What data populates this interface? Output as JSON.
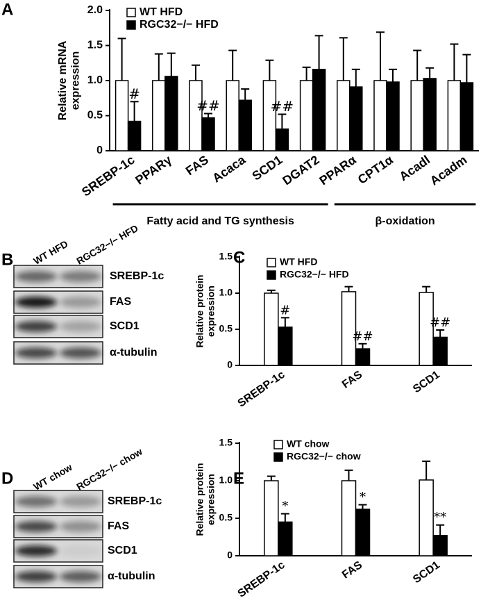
{
  "chart_data": [
    {
      "type": "bar",
      "panel": "A",
      "ylabel": "Relative mRNA expression",
      "categories": [
        "SREBP-1c",
        "PPARγ",
        "FAS",
        "Acaca",
        "SCD1",
        "DGAT2",
        "PPARα",
        "CPT1α",
        "Acadl",
        "Acadm"
      ],
      "series": [
        {
          "name": "WT HFD",
          "color": "#ffffff",
          "values": [
            1.0,
            1.0,
            1.0,
            1.0,
            1.0,
            1.0,
            1.0,
            1.0,
            1.0,
            1.0
          ],
          "errors": [
            0.6,
            0.38,
            0.22,
            0.43,
            0.29,
            0.19,
            0.61,
            0.69,
            0.43,
            0.52
          ],
          "significance": [
            null,
            null,
            null,
            null,
            null,
            null,
            null,
            null,
            null,
            null
          ]
        },
        {
          "name": "RGC32−/− HFD",
          "color": "#000000",
          "values": [
            0.42,
            1.06,
            0.47,
            0.72,
            0.31,
            1.16,
            0.91,
            0.98,
            1.03,
            0.97
          ],
          "errors": [
            0.28,
            0.33,
            0.06,
            0.16,
            0.21,
            0.48,
            0.25,
            0.18,
            0.15,
            0.4
          ],
          "significance": [
            "#",
            null,
            "##",
            null,
            "##",
            null,
            null,
            null,
            null,
            null
          ]
        }
      ],
      "groups": [
        {
          "label": "Fatty acid and TG synthesis",
          "from": "SREBP-1c",
          "to": "DGAT2"
        },
        {
          "label": "β-oxidation",
          "from": "PPARα",
          "to": "Acadm"
        }
      ],
      "ylim": [
        0,
        2
      ],
      "yticks": [
        0,
        0.5,
        {
          "value": 1,
          "label": "1.0"
        },
        1.5,
        {
          "value": 2,
          "label": "2.0"
        }
      ],
      "grid": false
    },
    {
      "type": "bar",
      "panel": "C",
      "ylabel": "Relative protein expression",
      "categories": [
        "SREBP-1c",
        "FAS",
        "SCD1"
      ],
      "series": [
        {
          "name": "WT HFD",
          "color": "#ffffff",
          "values": [
            1.0,
            1.02,
            1.01
          ],
          "errors": [
            0.04,
            0.07,
            0.08
          ],
          "significance": [
            null,
            null,
            null
          ]
        },
        {
          "name": "RGC32−/− HFD",
          "color": "#000000",
          "values": [
            0.53,
            0.23,
            0.39
          ],
          "errors": [
            0.13,
            0.07,
            0.1
          ],
          "significance": [
            "#",
            "##",
            "##"
          ]
        }
      ],
      "ylim": [
        0,
        1.5
      ],
      "yticks": [
        0,
        0.5,
        {
          "value": 1,
          "label": "1.0"
        },
        1.5
      ],
      "grid": false
    },
    {
      "type": "bar",
      "panel": "E",
      "ylabel": "Relative protein expression",
      "categories": [
        "SREBP-1c",
        "FAS",
        "SCD1"
      ],
      "series": [
        {
          "name": "WT chow",
          "color": "#ffffff",
          "values": [
            1.0,
            1.0,
            1.01
          ],
          "errors": [
            0.06,
            0.14,
            0.25
          ],
          "significance": [
            null,
            null,
            null
          ]
        },
        {
          "name": "RGC32−/− chow",
          "color": "#000000",
          "values": [
            0.45,
            0.62,
            0.27
          ],
          "errors": [
            0.11,
            0.06,
            0.14
          ],
          "significance": [
            "*",
            "*",
            "**"
          ]
        }
      ],
      "ylim": [
        0,
        1.5
      ],
      "yticks": [
        0,
        0.5,
        {
          "value": 1,
          "label": "1.0"
        },
        1.5
      ],
      "grid": false
    }
  ],
  "blots": [
    {
      "panel": "B",
      "lanes": [
        "WT HFD",
        "RGC32−/− HFD"
      ],
      "bands": [
        "SREBP-1c",
        "FAS",
        "SCD1",
        "α-tubulin"
      ]
    },
    {
      "panel": "D",
      "lanes": [
        "WT chow",
        "RGC32−/− chow"
      ],
      "bands": [
        "SREBP-1c",
        "FAS",
        "SCD1",
        "α-tubulin"
      ]
    }
  ]
}
